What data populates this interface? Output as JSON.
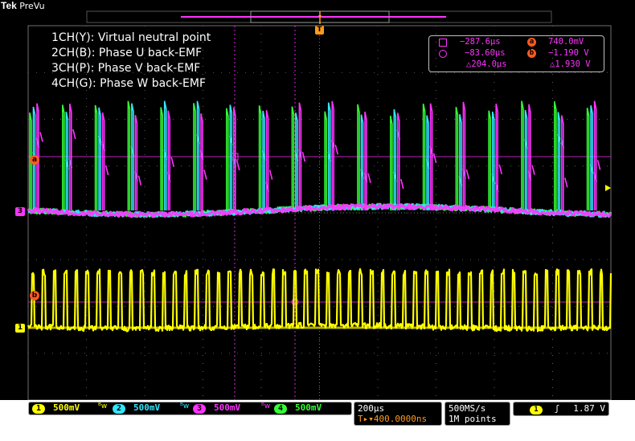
{
  "header": {
    "brand": "Tek",
    "mode": "PreVu"
  },
  "legend": [
    "1CH(Y): Virtual neutral point",
    "2CH(B): Phase U back-EMF",
    "3CH(P): Phase V back-EMF",
    "4CH(G): Phase W back-EMF"
  ],
  "cursors": {
    "t1": "−287.6µs",
    "t2": "−83.60µs",
    "dt": "△204.0µs",
    "va": "740.0mV",
    "vb": "−1.190 V",
    "dv": "△1.930 V",
    "a_label": "a",
    "b_label": "b"
  },
  "trigger_marker": "T",
  "channels": [
    {
      "num": "1",
      "scale": "500mV",
      "color": "#ffff00"
    },
    {
      "num": "2",
      "scale": "500mV",
      "color": "#33e6ff"
    },
    {
      "num": "3",
      "scale": "500mV",
      "color": "#ff33ff"
    },
    {
      "num": "4",
      "scale": "500mV",
      "color": "#33ff33"
    }
  ],
  "bw_glyph": "ᴮw",
  "timebase": {
    "scale": "200µs",
    "position": "T▸▾400.0000ns"
  },
  "acquisition": {
    "rate": "500MS/s",
    "record": "1M points"
  },
  "trigger": {
    "channel": "1",
    "slope": "ʃ",
    "level": "1.87 V"
  },
  "colors": {
    "ch1": "#ffff00",
    "ch2": "#33e6ff",
    "ch3": "#ff33ff",
    "ch4": "#33ff33",
    "cursor_label": "#ff5a1f",
    "trigger": "#ff9a1f"
  }
}
